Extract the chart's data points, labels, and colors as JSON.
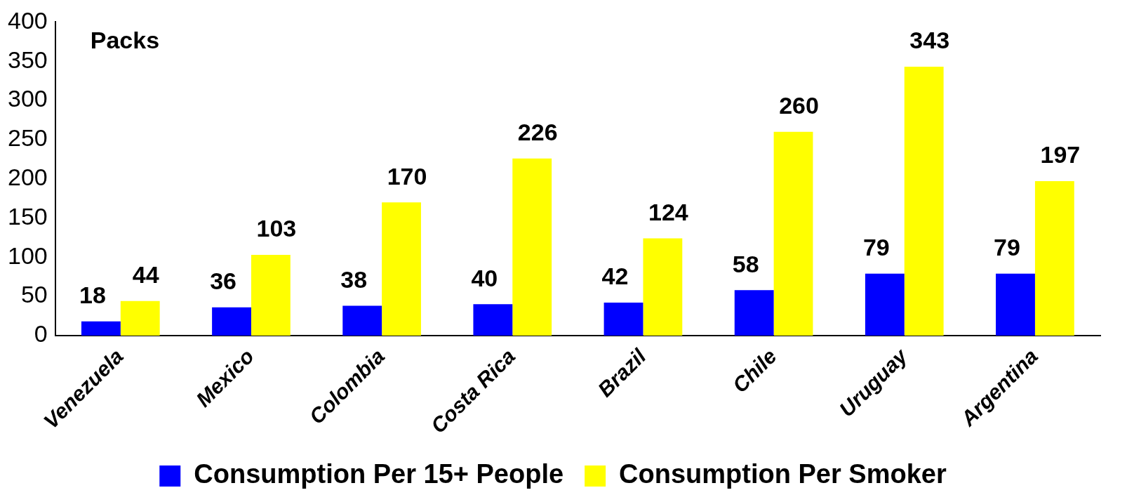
{
  "chart_data": {
    "type": "bar",
    "ylabel": "Packs",
    "categories": [
      "Venezuela",
      "Mexico",
      "Colombia",
      "Costa Rica",
      "Brazil",
      "Chile",
      "Uruguay",
      "Argentina"
    ],
    "series": [
      {
        "name": "Consumption Per 15+ People",
        "color": "#0000ff",
        "values": [
          18,
          36,
          38,
          40,
          42,
          58,
          79,
          79
        ]
      },
      {
        "name": "Consumption Per Smoker",
        "color": "#ffff00",
        "values": [
          44,
          103,
          170,
          226,
          124,
          260,
          343,
          197
        ]
      }
    ],
    "ylim": [
      0,
      400
    ],
    "yticks": [
      0,
      50,
      100,
      150,
      200,
      250,
      300,
      350,
      400
    ],
    "grid": false,
    "legend": "bottom",
    "data_labels": true
  }
}
